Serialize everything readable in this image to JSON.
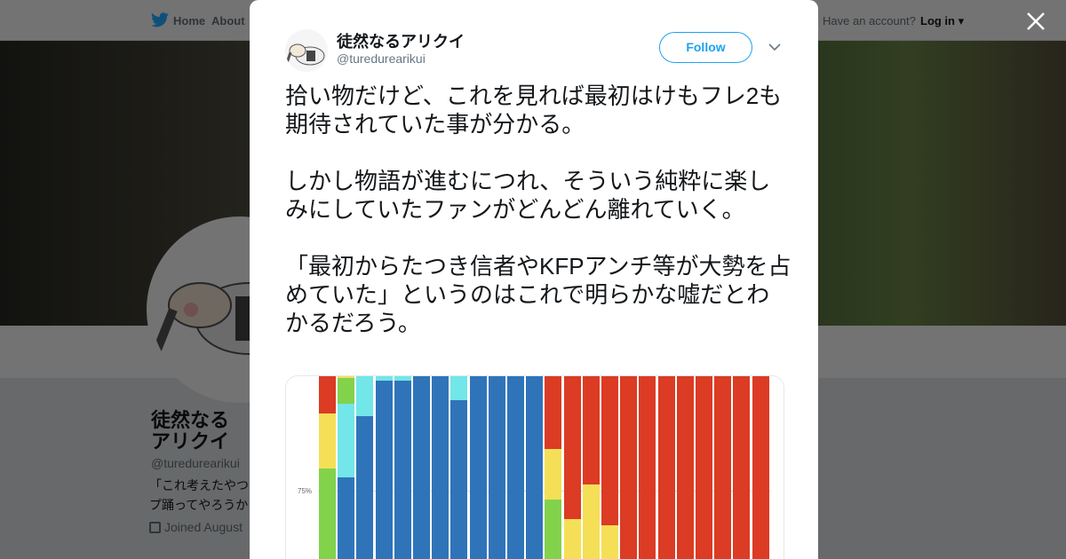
{
  "nav": {
    "home": "Home",
    "about": "About",
    "account": "Have an account?",
    "login": "Log in"
  },
  "profile": {
    "name": "徒然なるアリクイ",
    "handle": "@turedurearikui",
    "bio": [
      "「これ考えたやつ",
      "プ踊ってやろうか"
    ],
    "joined": "Joined August"
  },
  "tweet": {
    "author_name": "徒然なるアリクイ",
    "author_handle": "@turedurearikui",
    "follow_label": "Follow",
    "paragraphs": [
      "拾い物だけど、これを見れば最初はけもフレ2も期待されていた事が分かる。",
      "しかし物語が進むにつれ、そういう純粋に楽しみにしていたファンがどんどん離れていく。",
      "「最初からたつき信者やKFPアンチ等が大勢を占めていた」というのはこれで明らかな嘘だとわかるだろう。"
    ]
  },
  "colors": {
    "accent": "#1da1f2",
    "red": "#dc3b24",
    "yellow": "#f5df57",
    "green": "#82d24c",
    "cyan": "#72e6e8",
    "blue": "#2f74b9"
  },
  "chart_data": {
    "type": "bar",
    "stacked": true,
    "ytick_visible": "75%",
    "ylim_visible": [
      60,
      100
    ],
    "note_order": "segments listed top to bottom as [color, lower bound %]",
    "bars": [
      [
        [
          "red",
          92
        ],
        [
          "yellow",
          80
        ],
        [
          "green",
          0
        ]
      ],
      [
        [
          "yellow",
          99.6
        ],
        [
          "green",
          94
        ],
        [
          "cyan",
          78
        ],
        [
          "blue",
          0
        ]
      ],
      [
        [
          "cyan",
          91.3
        ],
        [
          "blue",
          0
        ]
      ],
      [
        [
          "cyan",
          99
        ],
        [
          "blue",
          0
        ]
      ],
      [
        [
          "cyan",
          99
        ],
        [
          "blue",
          0
        ]
      ],
      [
        [
          "blue",
          0
        ]
      ],
      [
        [
          "blue",
          0
        ]
      ],
      [
        [
          "cyan",
          94.8
        ],
        [
          "blue",
          0
        ]
      ],
      [
        [
          "blue",
          0
        ]
      ],
      [
        [
          "blue",
          0
        ]
      ],
      [
        [
          "blue",
          0
        ]
      ],
      [
        [
          "blue",
          0
        ]
      ],
      [
        [
          "red",
          84.2
        ],
        [
          "yellow",
          73.2
        ],
        [
          "green",
          0
        ]
      ],
      [
        [
          "red",
          69
        ],
        [
          "yellow",
          0
        ]
      ],
      [
        [
          "red",
          76.5
        ],
        [
          "yellow",
          0
        ]
      ],
      [
        [
          "red",
          67.7
        ],
        [
          "yellow",
          0
        ]
      ],
      [
        [
          "red",
          0
        ]
      ],
      [
        [
          "red",
          0
        ]
      ],
      [
        [
          "red",
          0
        ]
      ],
      [
        [
          "red",
          0
        ]
      ],
      [
        [
          "red",
          0
        ]
      ],
      [
        [
          "red",
          0
        ]
      ],
      [
        [
          "red",
          0
        ]
      ],
      [
        [
          "red",
          0
        ]
      ]
    ]
  }
}
